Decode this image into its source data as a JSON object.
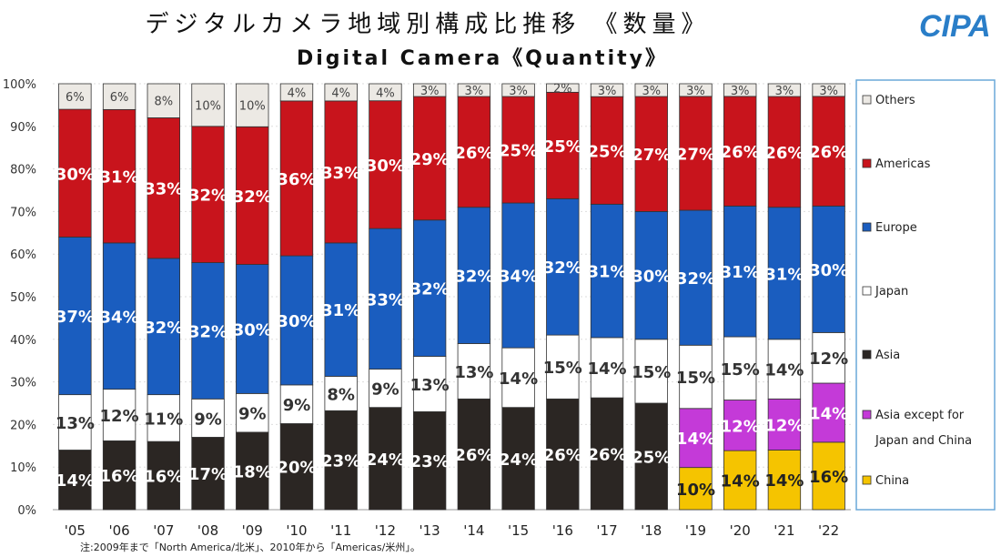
{
  "chart_data": {
    "type": "bar",
    "stacked": true,
    "title": "デジタルカメラ地域別構成比推移 《数量》",
    "subtitle": "Digital Camera《Quantity》",
    "logo": "CIPA",
    "note": "注:2009年まで「North America/北米」、2010年から「Americas/米州」。",
    "categories": [
      "'05",
      "'06",
      "'07",
      "'08",
      "'09",
      "'10",
      "'11",
      "'12",
      "'13",
      "'14",
      "'15",
      "'16",
      "'17",
      "'18",
      "'19",
      "'20",
      "'21",
      "'22"
    ],
    "yticks": [
      "0%",
      "10%",
      "20%",
      "30%",
      "40%",
      "50%",
      "60%",
      "70%",
      "80%",
      "90%",
      "100%"
    ],
    "ylim": [
      0,
      100
    ],
    "series": [
      {
        "name": "China",
        "color": "#f5c400",
        "text": "#222",
        "values": [
          null,
          null,
          null,
          null,
          null,
          null,
          null,
          null,
          null,
          null,
          null,
          null,
          null,
          null,
          10,
          14,
          14,
          16
        ]
      },
      {
        "name": "Asia",
        "color": "#2b2623",
        "text": "#fff",
        "values": [
          14,
          16,
          16,
          17,
          18,
          20,
          23,
          24,
          23,
          26,
          24,
          26,
          26,
          25,
          null,
          null,
          null,
          null
        ]
      },
      {
        "name": "Asia except for Japan and China",
        "color": "#c43ad8",
        "text": "#fff",
        "values": [
          null,
          null,
          null,
          null,
          null,
          null,
          null,
          null,
          null,
          null,
          null,
          null,
          null,
          null,
          14,
          12,
          12,
          14
        ]
      },
      {
        "name": "Japan",
        "color": "#ffffff",
        "text": "#333",
        "values": [
          13,
          12,
          11,
          9,
          9,
          9,
          8,
          9,
          13,
          13,
          14,
          15,
          14,
          15,
          15,
          15,
          14,
          12
        ]
      },
      {
        "name": "Europe",
        "color": "#1a5dbf",
        "text": "#fff",
        "values": [
          37,
          34,
          32,
          32,
          30,
          30,
          31,
          33,
          32,
          32,
          34,
          32,
          31,
          30,
          32,
          31,
          31,
          30
        ]
      },
      {
        "name": "Americas",
        "color": "#c8141c",
        "text": "#fff",
        "values": [
          30,
          31,
          33,
          32,
          32,
          36,
          33,
          30,
          29,
          26,
          25,
          25,
          25,
          27,
          27,
          26,
          26,
          26
        ]
      },
      {
        "name": "Others",
        "color": "#ece9e4",
        "text": "#444",
        "values": [
          6,
          6,
          8,
          10,
          10,
          4,
          4,
          4,
          3,
          3,
          3,
          2,
          3,
          3,
          3,
          3,
          3,
          3
        ]
      }
    ],
    "legend": [
      "Others",
      "Americas",
      "Europe",
      "Japan",
      "Asia",
      "Asia except for Japan and China",
      "China"
    ],
    "legend_placement": "right"
  }
}
